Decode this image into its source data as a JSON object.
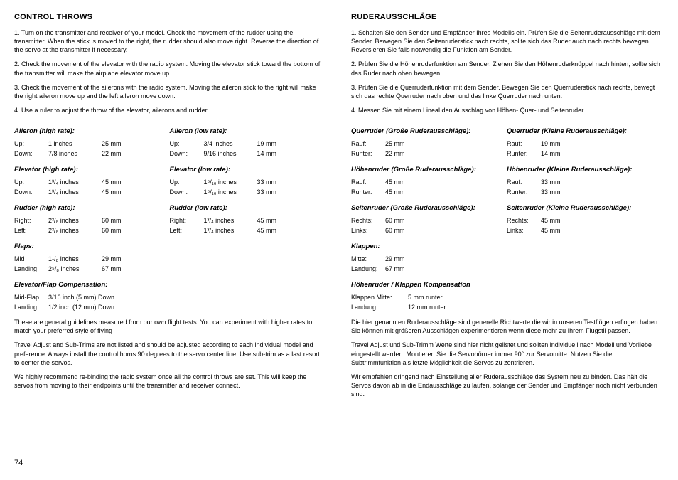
{
  "left": {
    "title": "CONTROL THROWS",
    "steps": [
      "1. Turn on the transmitter and receiver of your model. Check the movement of the rudder using the transmitter. When the stick is moved to the right, the rudder should also move right. Reverse the direction of the servo at the transmitter if necessary.",
      "2. Check the movement of the elevator with the radio system. Moving the elevator stick toward the bottom of the transmitter will make the airplane elevator move up.",
      "3. Check the movement of the ailerons with the radio system. Moving the aileron stick to the right will make the right aileron move up and the left aileron move down.",
      "4. Use a ruler to adjust the throw of the elevator, ailerons and rudder."
    ],
    "aileron_high": {
      "title": "Aileron (high rate):",
      "rows": [
        {
          "lbl": "Up:",
          "v1": "1 inches",
          "v2": "25 mm"
        },
        {
          "lbl": "Down:",
          "v1": "7/8 inches",
          "v2": "22 mm"
        }
      ]
    },
    "aileron_low": {
      "title": "Aileron (low rate):",
      "rows": [
        {
          "lbl": "Up:",
          "v1": "3/4 inches",
          "v2": "19 mm"
        },
        {
          "lbl": "Down:",
          "v1": "9/16 inches",
          "v2": "14 mm"
        }
      ]
    },
    "elevator_high": {
      "title": "Elevator (high rate):",
      "rows": [
        {
          "lbl": "Up:",
          "v1": "1³/₄ inches",
          "v2": "45 mm"
        },
        {
          "lbl": "Down:",
          "v1": "1³/₄ inches",
          "v2": "45 mm"
        }
      ]
    },
    "elevator_low": {
      "title": "Elevator (low rate):",
      "rows": [
        {
          "lbl": "Up:",
          "v1": "1⁵/₁₆ inches",
          "v2": "33 mm"
        },
        {
          "lbl": "Down:",
          "v1": "1⁵/₁₆ inches",
          "v2": "33 mm"
        }
      ]
    },
    "rudder_high": {
      "title": "Rudder (high rate):",
      "rows": [
        {
          "lbl": "Right:",
          "v1": "2³/₈ inches",
          "v2": "60 mm"
        },
        {
          "lbl": "Left:",
          "v1": "2³/₈ inches",
          "v2": "60 mm"
        }
      ]
    },
    "rudder_low": {
      "title": "Rudder (low rate):",
      "rows": [
        {
          "lbl": "Right:",
          "v1": "1³/₄ inches",
          "v2": "45 mm"
        },
        {
          "lbl": "Left:",
          "v1": "1³/₄ inches",
          "v2": "45 mm"
        }
      ]
    },
    "flaps": {
      "title": "Flaps:",
      "rows": [
        {
          "lbl": "Mid",
          "v1": "1¹/₈ inches",
          "v2": "29 mm"
        },
        {
          "lbl": "Landing",
          "v1": "2⁵/₈ inches",
          "v2": "67 mm"
        }
      ]
    },
    "comp": {
      "title": "Elevator/Flap Compensation:",
      "rows": [
        {
          "lbl": "Mid-Flap",
          "v1": "3/16 inch (5 mm) Down"
        },
        {
          "lbl": "Landing",
          "v1": "1/2 inch (12 mm) Down"
        }
      ]
    },
    "notes": [
      "These are general guidelines measured from our own flight tests. You can experiment with higher rates to match your preferred style of flying",
      "Travel Adjust and Sub-Trims are not listed and should be adjusted according to each individual model and preference. Always install the control horns 90 degrees to the servo center line. Use sub-trim as a last resort to center the servos.",
      "We highly recommend re-binding the radio system once all the control throws are set. This will keep the servos from moving to their endpoints until the transmitter and receiver connect."
    ]
  },
  "right": {
    "title": "RUDERAUSSCHLÄGE",
    "steps": [
      "1. Schalten Sie den Sender und Empfänger Ihres Modells ein. Prüfen Sie die Seitenruderausschläge mit dem Sender. Bewegen Sie den Seitenruderstick nach rechts, sollte sich das Ruder auch nach rechts bewegen. Reversieren Sie falls notwendig die Funktion am Sender.",
      "2. Prüfen Sie die Höhenruderfunktion am Sender. Ziehen Sie den Höhenruderknüppel nach hinten, sollte sich das Ruder nach oben bewegen.",
      "3. Prüfen Sie die Querruderfunktion mit dem Sender. Bewegen Sie den Querruderstick nach rechts, bewegt sich das rechte Querruder nach oben und das linke Querruder nach unten.",
      "4. Messen Sie mit einem Lineal den Ausschlag von Höhen- Quer- und Seitenruder."
    ],
    "qr_gross": {
      "title": "Querruder (Große Ruderausschläge):",
      "rows": [
        {
          "lbl": "Rauf:",
          "v1": "25 mm"
        },
        {
          "lbl": "Runter:",
          "v1": "22 mm"
        }
      ]
    },
    "qr_klein": {
      "title": "Querruder (Kleine Ruderausschläge):",
      "rows": [
        {
          "lbl": "Rauf:",
          "v1": "19 mm"
        },
        {
          "lbl": "Runter:",
          "v1": "14 mm"
        }
      ]
    },
    "hr_gross": {
      "title": "Höhenruder (Große Ruderausschläge):",
      "rows": [
        {
          "lbl": "Rauf:",
          "v1": "45 mm"
        },
        {
          "lbl": "Runter:",
          "v1": "45 mm"
        }
      ]
    },
    "hr_klein": {
      "title": "Höhenruder (Kleine Ruderausschläge):",
      "rows": [
        {
          "lbl": "Rauf:",
          "v1": "33 mm"
        },
        {
          "lbl": "Runter:",
          "v1": "33 mm"
        }
      ]
    },
    "sr_gross": {
      "title": "Seitenruder (Große Ruderausschläge):",
      "rows": [
        {
          "lbl": "Rechts:",
          "v1": "60 mm"
        },
        {
          "lbl": "Links:",
          "v1": "60 mm"
        }
      ]
    },
    "sr_klein": {
      "title": "Seitenruder (Kleine Ruderausschläge):",
      "rows": [
        {
          "lbl": "Rechts:",
          "v1": "45 mm"
        },
        {
          "lbl": "Links:",
          "v1": "45 mm"
        }
      ]
    },
    "klappen": {
      "title": "Klappen:",
      "rows": [
        {
          "lbl": "Mitte:",
          "v1": "29 mm"
        },
        {
          "lbl": "Landung:",
          "v1": "67 mm"
        }
      ]
    },
    "komp": {
      "title": "Höhenruder / Klappen Kompensation",
      "rows": [
        {
          "lbl": "Klappen Mitte:",
          "v1": "5 mm runter"
        },
        {
          "lbl": "Landung:",
          "v1": "12 mm runter"
        }
      ]
    },
    "notes": [
      "Die hier genannten Ruderausschläge sind generelle Richtwerte die wir in unseren Testflügen erflogen haben. Sie können mit größeren Ausschlägen experimentieren wenn diese mehr zu Ihrem Flugstil passen.",
      "Travel Adjust und Sub-Trimm Werte sind hier nicht gelistet und sollten individuell nach Modell und Vorliebe eingestellt werden. Montieren Sie die Servohörner immer 90° zur Servomitte. Nutzen Sie die Subtrimmfunktion als letzte Möglichkeit die Servos zu zentrieren.",
      "Wir empfehlen dringend nach Einstellung aller Ruderausschläge das System neu zu binden. Das hält die Servos davon ab in die Endausschläge zu laufen, solange der Sender und Empfänger noch nicht verbunden sind."
    ]
  },
  "page_num": "74"
}
